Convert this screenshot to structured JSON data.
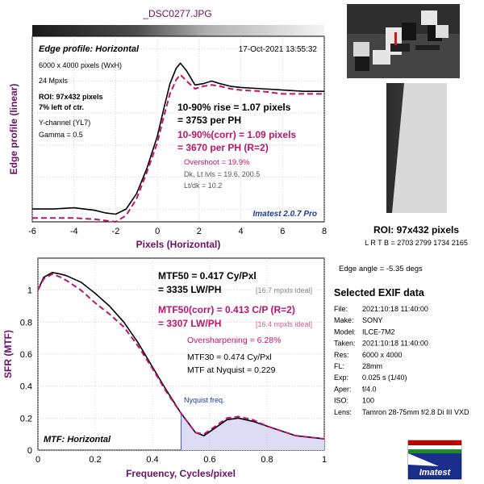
{
  "file_title": "_DSC0277.JPG",
  "colors": {
    "title": "#6b0f6b",
    "black": "#000000",
    "corr": "#c0136a",
    "blue": "#1a3aa0",
    "nyquist_fill": "#dcdcf4"
  },
  "edge_panel": {
    "heading": "Edge profile: Horizontal",
    "timestamp": "17-Oct-2021 13:55:32",
    "info_lines": [
      "6000 x 4000 pixels (WxH)",
      "24 Mpxls"
    ],
    "roi_lines": [
      "ROI: 97x432 pixels",
      "7% left of ctr."
    ],
    "channel_lines": [
      "Y-channel  (YL7)",
      "Gamma = 0.5"
    ],
    "rise_lines": [
      "10-90% rise = 1.07 pixels",
      "= 3753 per PH"
    ],
    "corr_lines": [
      "10-90%(corr) = 1.09 pixels",
      "= 3670 per PH  (R=2)"
    ],
    "overshoot": "Overshoot = 19.9%",
    "dk_line": "Dk, Lt lvls = 19.6, 200.5",
    "ltdk_line": "Lt/dk = 10.2",
    "version": "Imatest 2.0.7 Pro",
    "ylabel": "Edge profile (linear)",
    "xlabel": "Pixels (Horizontal)"
  },
  "mtf_panel": {
    "mtf50_lines": [
      "MTF50 = 0.417 Cy/Pxl",
      "= 3335 LW/PH"
    ],
    "mtf50_ideal": "[16.7 mpxls ideal]",
    "corr_lines": [
      "MTF50(corr) = 0.413 C/P  (R=2)",
      "= 3307 LW/PH"
    ],
    "corr_ideal": "[16.4 mpxls ideal]",
    "oversharpening": "Oversharpening = 6.28%",
    "mtf30": "MTF30 = 0.474 Cy/Pxl",
    "mtf_nyquist": "MTF at Nyquist = 0.229",
    "nyquist_label": "Nyquist freq.",
    "bottom_label": "MTF: Horizontal",
    "ylabel": "SFR (MTF)",
    "xlabel": "Frequency, Cycles/pixel"
  },
  "right_panel": {
    "roi_title": "ROI: 97x432 pixels",
    "roi_coords": "L R  T B = 2703 2799  1734 2165",
    "edge_angle": "Edge angle = -5.35 degs",
    "exif_title": "Selected EXIF data",
    "exif": [
      {
        "key": "File:",
        "val": "2021:10:18 11:40:00"
      },
      {
        "key": "Make:",
        "val": "SONY"
      },
      {
        "key": "Model:",
        "val": "ILCE-7M2"
      },
      {
        "key": "Taken:",
        "val": "2021:10:18 11:40:00"
      },
      {
        "key": "Res:",
        "val": "6000 x 4000"
      },
      {
        "key": "FL:",
        "val": "28mm"
      },
      {
        "key": "Exp:",
        "val": "0.025 s  (1/40)"
      },
      {
        "key": "Aper:",
        "val": "f/4.0"
      },
      {
        "key": "ISO:",
        "val": "100"
      },
      {
        "key": "Lens:",
        "val": "Tamron 28-75mm f/2.8 Di III VXD"
      }
    ],
    "logo_text": "Imatest"
  },
  "chart_data": [
    {
      "type": "line",
      "title": "Edge profile: Horizontal",
      "xlabel": "Pixels (Horizontal)",
      "ylabel": "Edge profile (linear)",
      "xlim": [
        -6,
        8
      ],
      "xticks": [
        -6,
        -4,
        -2,
        0,
        2,
        4,
        6,
        8
      ],
      "ylim": [
        0,
        1.45
      ],
      "grid": true,
      "series": [
        {
          "color": "#000000",
          "style": "solid",
          "x": [
            -6,
            -5,
            -4,
            -3,
            -2.5,
            -2,
            -1.5,
            -1,
            -0.5,
            0,
            0.3,
            0.6,
            0.9,
            1.1,
            1.4,
            1.8,
            2.2,
            2.6,
            3,
            3.5,
            4,
            5,
            6,
            7,
            8
          ],
          "y": [
            0.1,
            0.1,
            0.11,
            0.09,
            0.07,
            0.06,
            0.1,
            0.22,
            0.42,
            0.67,
            0.88,
            1.08,
            1.2,
            1.24,
            1.18,
            1.07,
            1.08,
            1.1,
            1.08,
            1.06,
            1.05,
            1.04,
            1.03,
            1.02,
            1.02
          ]
        },
        {
          "color": "#c0136a",
          "style": "dashed",
          "x": [
            -6,
            -5,
            -4,
            -3,
            -2.5,
            -2,
            -1.5,
            -1,
            -0.5,
            0,
            0.3,
            0.6,
            0.9,
            1.1,
            1.4,
            1.8,
            2.2,
            2.6,
            3,
            3.5,
            4,
            5,
            6,
            7,
            8
          ],
          "y": [
            0.03,
            0.03,
            0.03,
            0.02,
            0.01,
            0.0,
            0.05,
            0.18,
            0.39,
            0.62,
            0.82,
            1.0,
            1.11,
            1.15,
            1.1,
            1.04,
            1.06,
            1.07,
            1.06,
            1.04,
            1.03,
            1.02,
            1.0,
            1.0,
            1.0
          ]
        }
      ]
    },
    {
      "type": "line",
      "title": "MTF: Horizontal",
      "xlabel": "Frequency, Cycles/pixel",
      "ylabel": "SFR (MTF)",
      "xlim": [
        0,
        1
      ],
      "xticks": [
        0,
        0.2,
        0.4,
        0.6,
        0.8,
        1
      ],
      "ylim": [
        0,
        1.2
      ],
      "yticks": [
        0,
        0.2,
        0.4,
        0.6,
        0.8,
        1
      ],
      "grid": true,
      "nyquist": 0.5,
      "series": [
        {
          "color": "#000000",
          "style": "solid",
          "x": [
            0,
            0.02,
            0.05,
            0.08,
            0.1,
            0.15,
            0.2,
            0.25,
            0.3,
            0.35,
            0.4,
            0.45,
            0.5,
            0.55,
            0.58,
            0.62,
            0.66,
            0.7,
            0.75,
            0.8,
            0.85,
            0.9,
            0.95,
            1
          ],
          "y": [
            1.0,
            1.08,
            1.11,
            1.1,
            1.09,
            1.05,
            0.98,
            0.9,
            0.8,
            0.67,
            0.52,
            0.37,
            0.23,
            0.11,
            0.09,
            0.14,
            0.19,
            0.2,
            0.18,
            0.15,
            0.12,
            0.09,
            0.08,
            0.07
          ]
        },
        {
          "color": "#c0136a",
          "style": "dashed",
          "x": [
            0,
            0.02,
            0.05,
            0.08,
            0.1,
            0.15,
            0.2,
            0.25,
            0.3,
            0.35,
            0.4,
            0.45,
            0.5,
            0.55,
            0.58,
            0.62,
            0.66,
            0.7,
            0.75,
            0.8,
            0.85,
            0.9,
            0.95,
            1
          ],
          "y": [
            1.0,
            1.07,
            1.1,
            1.08,
            1.06,
            1.0,
            0.92,
            0.85,
            0.77,
            0.65,
            0.51,
            0.36,
            0.23,
            0.11,
            0.1,
            0.15,
            0.2,
            0.21,
            0.19,
            0.15,
            0.12,
            0.09,
            0.08,
            0.07
          ]
        }
      ]
    }
  ]
}
